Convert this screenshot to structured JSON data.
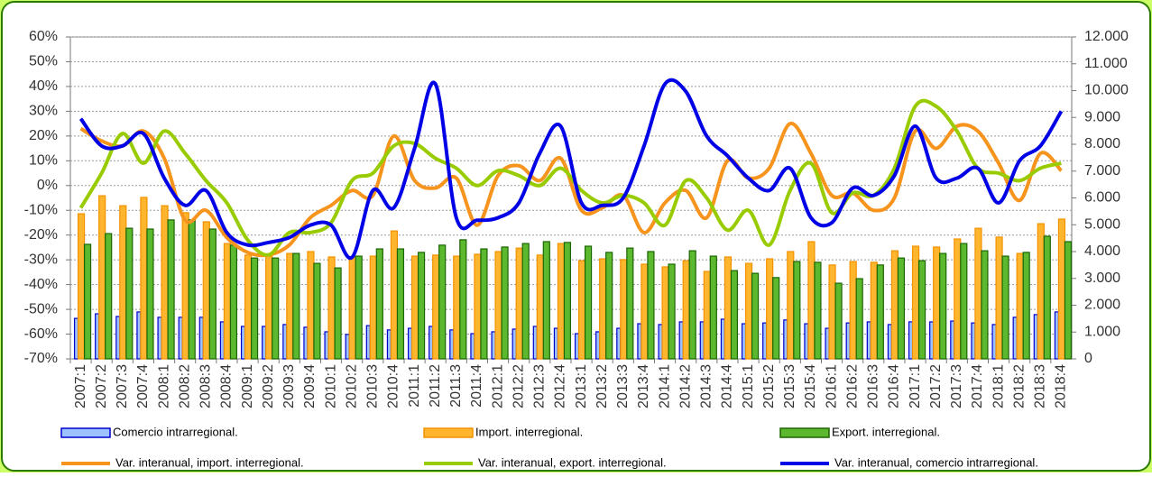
{
  "chart_data": {
    "type": "combo",
    "categories": [
      "2007:1",
      "2007:2",
      "2007:3",
      "2007:4",
      "2008:1",
      "2008:2",
      "2008:3",
      "2008:4",
      "2009:1",
      "2009:2",
      "2009:3",
      "2009:4",
      "2010:1",
      "2010:2",
      "2010:3",
      "2010:4",
      "2011:1",
      "2011:2",
      "2011:3",
      "2011:4",
      "2012:1",
      "2012:2",
      "2012:3",
      "2012:4",
      "2013:1",
      "2013:2",
      "2013:3",
      "2013:4",
      "2014:1",
      "2014:2",
      "2014:3",
      "2014:4",
      "2015:1",
      "2015:2",
      "2015:3",
      "2015:4",
      "2016:1",
      "2016:2",
      "2016:3",
      "2016:4",
      "2017:1",
      "2017:2",
      "2017:3",
      "2017:4",
      "2018:1",
      "2018:2",
      "2018:3",
      "2018:4"
    ],
    "ylim": [
      -70,
      60
    ],
    "yticks": [
      {
        "value": -70,
        "label": "-70%"
      },
      {
        "value": -60,
        "label": "-60%"
      },
      {
        "value": -50,
        "label": "-50%"
      },
      {
        "value": -40,
        "label": "-40%"
      },
      {
        "value": -30,
        "label": "-30%"
      },
      {
        "value": -20,
        "label": "-20%"
      },
      {
        "value": -10,
        "label": "-10%"
      },
      {
        "value": 0,
        "label": "0%"
      },
      {
        "value": 10,
        "label": "10%"
      },
      {
        "value": 20,
        "label": "20%"
      },
      {
        "value": 30,
        "label": "30%"
      },
      {
        "value": 40,
        "label": "40%"
      },
      {
        "value": 50,
        "label": "50%"
      },
      {
        "value": 60,
        "label": "60%"
      }
    ],
    "y2lim": [
      0,
      12000
    ],
    "y2ticks": [
      0,
      {
        "value": 1000,
        "label": "1.000"
      },
      {
        "value": 2000,
        "label": "2.000"
      },
      {
        "value": 3000,
        "label": "3.000"
      },
      {
        "value": 4000,
        "label": "4.000"
      },
      {
        "value": 5000,
        "label": "5.000"
      },
      {
        "value": 6000,
        "label": "6.000"
      },
      {
        "value": 7000,
        "label": "7.000"
      },
      {
        "value": 8000,
        "label": "8.000"
      },
      {
        "value": 9000,
        "label": "9.000"
      },
      {
        "value": 10000,
        "label": "10.000"
      },
      {
        "value": 11000,
        "label": "11.000"
      },
      {
        "value": 12000,
        "label": "12.000"
      }
    ],
    "grid": true,
    "series": [
      {
        "name": "Comercio intrarregional.",
        "type": "bar",
        "axis": "y2",
        "color": "#9cc3ff",
        "values": [
          1510,
          1680,
          1580,
          1750,
          1550,
          1550,
          1550,
          1380,
          1210,
          1210,
          1280,
          1180,
          1010,
          910,
          1240,
          1080,
          1140,
          1210,
          1080,
          940,
          1010,
          1110,
          1210,
          1140,
          940,
          1010,
          1140,
          1310,
          1280,
          1380,
          1380,
          1480,
          1310,
          1340,
          1450,
          1310,
          1140,
          1340,
          1380,
          1280,
          1380,
          1380,
          1410,
          1340,
          1280,
          1550,
          1650,
          1750
        ]
      },
      {
        "name": "Import. interregional.",
        "type": "bar",
        "axis": "y2",
        "color": "#ffb52e",
        "values": [
          5410,
          6080,
          5710,
          6020,
          5710,
          5450,
          5110,
          4300,
          3870,
          3830,
          3930,
          4000,
          3800,
          3800,
          3830,
          4770,
          3830,
          3870,
          3830,
          3900,
          4000,
          4130,
          3870,
          4300,
          3660,
          3730,
          3700,
          3530,
          3430,
          3660,
          3260,
          3800,
          3560,
          3730,
          4000,
          4370,
          3500,
          3630,
          3600,
          4030,
          4200,
          4170,
          4470,
          4870,
          4540,
          3930,
          5040,
          5210
        ]
      },
      {
        "name": "Export. interregional.",
        "type": "bar",
        "axis": "y2",
        "color": "#5cb82e",
        "values": [
          4270,
          4670,
          4870,
          4840,
          5180,
          5180,
          4840,
          4240,
          3760,
          3760,
          3930,
          3560,
          3390,
          3830,
          4100,
          4100,
          3970,
          4240,
          4440,
          4100,
          4170,
          4300,
          4370,
          4340,
          4200,
          3970,
          4130,
          4000,
          3530,
          4030,
          3830,
          3290,
          3190,
          3030,
          3630,
          3600,
          2820,
          2990,
          3500,
          3760,
          3660,
          3930,
          4300,
          4030,
          3830,
          3970,
          4570,
          4370
        ]
      },
      {
        "name": "Var. interanual, import. interregional.",
        "type": "line",
        "color": "#f7941d",
        "values": [
          23,
          18,
          16,
          22,
          11,
          -14,
          -10,
          -21,
          -27,
          -28,
          -24,
          -13,
          -8,
          -2,
          -4,
          20,
          2,
          -1,
          3,
          -16,
          4,
          8,
          2,
          11,
          -10,
          -9,
          -4,
          -19,
          -7,
          -2,
          -13,
          10,
          3,
          7,
          25,
          13,
          -4,
          -3,
          -10,
          -5,
          22,
          15,
          24,
          22,
          9,
          -6,
          13,
          6
        ]
      },
      {
        "name": "Var. interanual, export. interregional.",
        "type": "line",
        "color": "#99cc00",
        "values": [
          -9,
          5,
          21,
          9,
          22,
          13,
          2,
          -7,
          -22,
          -28,
          -19,
          -19,
          -15,
          2,
          5,
          16,
          17,
          11,
          7,
          0,
          6,
          4,
          0,
          7,
          -2,
          -7,
          -4,
          -7,
          -16,
          2,
          -5,
          -18,
          -10,
          -24,
          -2,
          9,
          -11,
          -3,
          -4,
          7,
          32,
          32,
          22,
          7,
          5,
          2,
          7,
          9
        ]
      },
      {
        "name": "Var. interanual, comercio intrarregional.",
        "type": "line",
        "color": "#0000e6",
        "values": [
          27,
          16,
          16,
          21,
          3,
          -8,
          -2,
          -19,
          -24,
          -23,
          -21,
          -16,
          -16,
          -29,
          -2,
          -9,
          15,
          41,
          -13,
          -14,
          -13,
          -7,
          13,
          24,
          -7,
          -8,
          -5,
          16,
          41,
          38,
          20,
          12,
          3,
          -2,
          7,
          -13,
          -15,
          -1,
          -4,
          4,
          24,
          3,
          3,
          7,
          -7,
          10,
          16,
          30
        ]
      }
    ]
  }
}
